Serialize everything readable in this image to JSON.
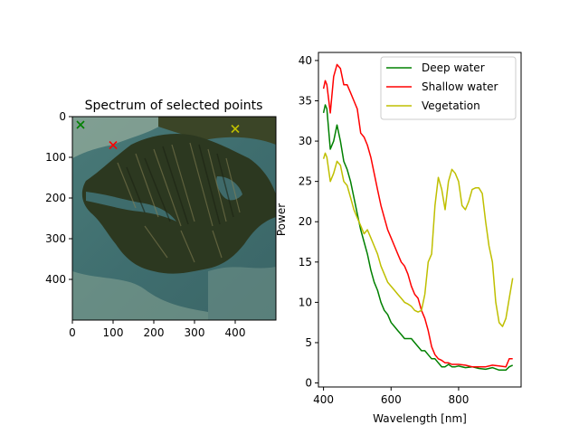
{
  "chart_data": [
    {
      "type": "image",
      "title": "Spectrum of selected points",
      "xlim": [
        0,
        500
      ],
      "ylim": [
        500,
        0
      ],
      "x_ticks": [
        0,
        100,
        200,
        300,
        400
      ],
      "y_ticks": [
        0,
        100,
        200,
        300,
        400
      ],
      "image_description_colors": {
        "sea": "#3d6a6c",
        "shallow": "#8fa89a",
        "land": "#2f3a22"
      },
      "markers": [
        {
          "label": "Deep water",
          "x": 20,
          "y": 20,
          "color": "#008000",
          "marker": "x"
        },
        {
          "label": "Shallow water",
          "x": 100,
          "y": 70,
          "color": "#ff0000",
          "marker": "x"
        },
        {
          "label": "Vegetation",
          "x": 400,
          "y": 30,
          "color": "#bfbf00",
          "marker": "x"
        }
      ]
    },
    {
      "type": "line",
      "xlabel": "Wavelength [nm]",
      "ylabel": "Power",
      "xlim": [
        385,
        985
      ],
      "ylim": [
        -0.5,
        41
      ],
      "x_ticks": [
        400,
        600,
        800
      ],
      "y_ticks": [
        0,
        5,
        10,
        15,
        20,
        25,
        30,
        35,
        40
      ],
      "legend_position": "top-right",
      "series": [
        {
          "name": "Deep water",
          "color": "#008000",
          "x": [
            400,
            405,
            410,
            420,
            430,
            440,
            450,
            460,
            470,
            480,
            490,
            500,
            510,
            520,
            530,
            540,
            550,
            560,
            570,
            580,
            590,
            600,
            610,
            620,
            630,
            640,
            650,
            660,
            670,
            680,
            690,
            700,
            710,
            720,
            730,
            740,
            750,
            760,
            770,
            780,
            790,
            800,
            820,
            840,
            860,
            880,
            900,
            920,
            940,
            950,
            960
          ],
          "values": [
            33.5,
            34.5,
            34,
            29,
            30,
            32,
            30,
            27.5,
            26.5,
            25,
            23,
            21,
            19,
            17.5,
            16,
            14,
            12.5,
            11.5,
            10,
            9,
            8.5,
            7.5,
            7,
            6.5,
            6,
            5.5,
            5.5,
            5.5,
            5,
            4.5,
            4,
            4,
            3.5,
            3,
            3,
            2.5,
            2,
            2,
            2.3,
            2,
            2,
            2.1,
            1.9,
            2,
            1.8,
            1.7,
            1.9,
            1.6,
            1.6,
            2,
            2.2
          ]
        },
        {
          "name": "Shallow water",
          "color": "#ff0000",
          "x": [
            400,
            405,
            410,
            420,
            430,
            440,
            450,
            460,
            470,
            480,
            490,
            500,
            510,
            520,
            530,
            540,
            550,
            560,
            570,
            580,
            590,
            600,
            610,
            620,
            630,
            640,
            650,
            660,
            670,
            680,
            690,
            700,
            710,
            720,
            730,
            740,
            750,
            760,
            770,
            780,
            790,
            800,
            820,
            840,
            860,
            880,
            900,
            920,
            940,
            950,
            960
          ],
          "values": [
            36.5,
            37.5,
            37,
            33.5,
            38,
            39.5,
            39,
            37,
            37,
            36,
            35,
            34,
            31,
            30.5,
            29.5,
            28,
            26,
            24,
            22,
            20.5,
            19,
            18,
            17,
            16,
            15,
            14.5,
            13.5,
            12,
            11,
            10.5,
            9,
            8,
            6.5,
            4.5,
            3.5,
            3,
            2.8,
            2.5,
            2.5,
            2.3,
            2.3,
            2.3,
            2.2,
            2,
            2,
            2,
            2.2,
            2.1,
            2,
            3,
            3
          ]
        },
        {
          "name": "Vegetation",
          "color": "#bfbf00",
          "x": [
            400,
            405,
            410,
            420,
            430,
            440,
            450,
            460,
            470,
            480,
            490,
            500,
            510,
            520,
            530,
            540,
            550,
            560,
            570,
            580,
            590,
            600,
            610,
            620,
            630,
            640,
            650,
            660,
            670,
            680,
            690,
            700,
            710,
            720,
            730,
            740,
            750,
            760,
            770,
            780,
            790,
            800,
            810,
            820,
            830,
            840,
            850,
            860,
            870,
            880,
            890,
            900,
            910,
            920,
            930,
            940,
            950,
            960
          ],
          "values": [
            27.8,
            28.5,
            28,
            25,
            26,
            27.5,
            27,
            25,
            24.5,
            23,
            21.5,
            20.5,
            19.5,
            18.5,
            19,
            18,
            17,
            16,
            14.5,
            13.5,
            12.5,
            12,
            11.5,
            11,
            10.5,
            10,
            9.8,
            9.5,
            9,
            8.8,
            9,
            11,
            15,
            16,
            22,
            25.5,
            24,
            21.5,
            25,
            26.5,
            26,
            25,
            22,
            21.5,
            22.5,
            24,
            24.2,
            24.2,
            23.5,
            20,
            17,
            15,
            10,
            7.5,
            7,
            8,
            10.5,
            13
          ]
        }
      ]
    }
  ]
}
